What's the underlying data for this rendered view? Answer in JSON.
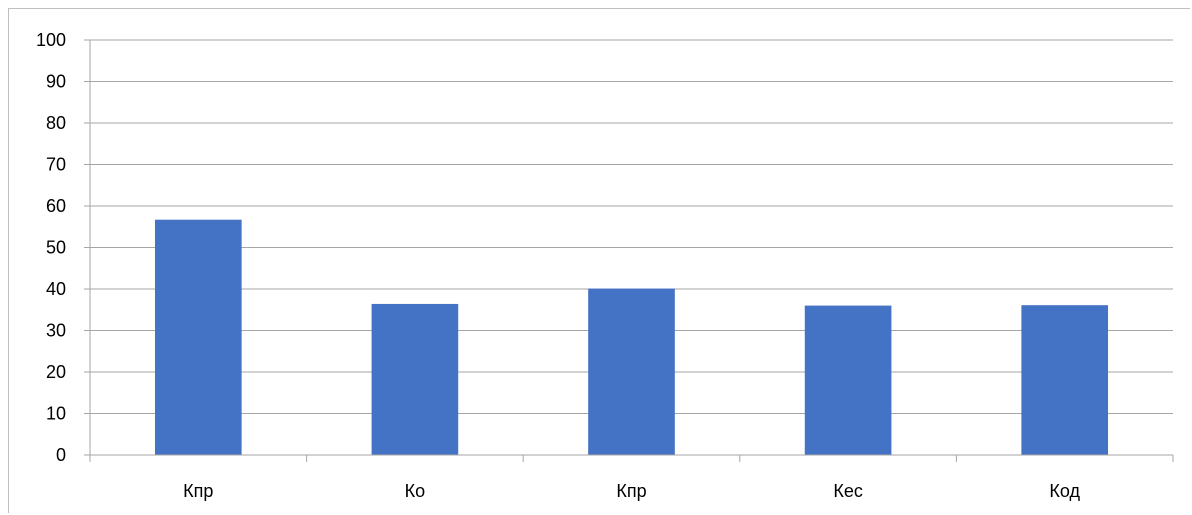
{
  "chart_data": {
    "type": "bar",
    "title": "",
    "xlabel": "",
    "ylabel": "",
    "categories": [
      "Кпр",
      "Ко",
      "Кпр",
      "Кес",
      "Код"
    ],
    "values": [
      56.7,
      36.4,
      40.1,
      36.0,
      36.1
    ],
    "ylim": [
      0,
      100
    ],
    "yticks": [
      0,
      10,
      20,
      30,
      40,
      50,
      60,
      70,
      80,
      90,
      100
    ],
    "grid": true,
    "legend": "none",
    "bar_color": "#4472C4",
    "grid_color": "#a6a6a6",
    "axis_color": "#a6a6a6"
  }
}
